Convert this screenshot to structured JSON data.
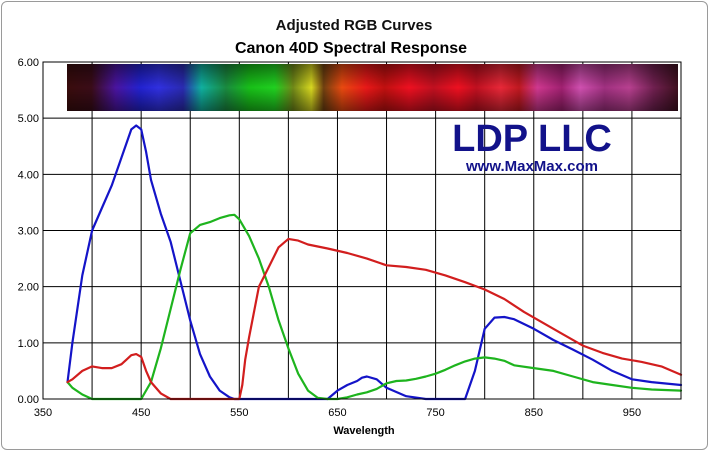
{
  "chart_data": {
    "type": "line",
    "title": "Adjusted RGB Curves",
    "subtitle": "Canon 40D Spectral Response",
    "xlabel": "Wavelength",
    "ylabel": "",
    "xlim": [
      350,
      1000
    ],
    "ylim": [
      0,
      6
    ],
    "x_ticks": [
      "350",
      "450",
      "550",
      "650",
      "750",
      "850",
      "950"
    ],
    "y_ticks": [
      "0.00",
      "1.00",
      "2.00",
      "3.00",
      "4.00",
      "5.00",
      "6.00"
    ],
    "grid": true,
    "legend": "none",
    "series": [
      {
        "color": "#1414c8",
        "x": [
          375,
          380,
          390,
          400,
          410,
          420,
          430,
          440,
          445,
          450,
          455,
          460,
          470,
          480,
          490,
          500,
          510,
          520,
          530,
          540,
          545,
          550,
          560,
          570,
          580,
          590,
          600,
          620,
          640,
          650,
          660,
          670,
          675,
          680,
          690,
          700,
          720,
          740,
          760,
          770,
          775,
          780,
          790,
          800,
          810,
          820,
          830,
          850,
          870,
          890,
          910,
          930,
          950,
          970,
          1000
        ],
        "y": [
          0.3,
          1.0,
          2.2,
          3.0,
          3.4,
          3.8,
          4.3,
          4.8,
          4.87,
          4.8,
          4.4,
          3.9,
          3.3,
          2.8,
          2.1,
          1.4,
          0.8,
          0.4,
          0.15,
          0.03,
          0.0,
          0.0,
          0.0,
          0.0,
          0.0,
          0.0,
          0.0,
          0.0,
          0.0,
          0.15,
          0.25,
          0.32,
          0.38,
          0.4,
          0.35,
          0.2,
          0.05,
          0.0,
          0.0,
          0.0,
          0.0,
          0.0,
          0.5,
          1.25,
          1.45,
          1.46,
          1.42,
          1.25,
          1.05,
          0.88,
          0.7,
          0.5,
          0.35,
          0.3,
          0.25
        ]
      },
      {
        "color": "#1eb41e",
        "x": [
          375,
          380,
          390,
          400,
          410,
          420,
          430,
          440,
          450,
          460,
          470,
          480,
          490,
          500,
          510,
          520,
          530,
          540,
          545,
          550,
          560,
          570,
          580,
          590,
          600,
          610,
          620,
          630,
          640,
          650,
          660,
          670,
          680,
          690,
          700,
          710,
          720,
          730,
          740,
          750,
          760,
          770,
          780,
          790,
          800,
          810,
          820,
          830,
          850,
          870,
          890,
          910,
          930,
          950,
          970,
          1000
        ],
        "y": [
          0.3,
          0.2,
          0.08,
          0.0,
          0.0,
          0.0,
          0.0,
          0.0,
          0.0,
          0.3,
          0.9,
          1.6,
          2.3,
          2.95,
          3.1,
          3.15,
          3.22,
          3.27,
          3.28,
          3.2,
          2.9,
          2.5,
          2.0,
          1.4,
          0.9,
          0.45,
          0.15,
          0.02,
          0.0,
          0.0,
          0.03,
          0.08,
          0.12,
          0.18,
          0.28,
          0.32,
          0.33,
          0.36,
          0.4,
          0.45,
          0.52,
          0.6,
          0.67,
          0.72,
          0.74,
          0.72,
          0.68,
          0.6,
          0.55,
          0.5,
          0.4,
          0.3,
          0.25,
          0.2,
          0.17,
          0.15
        ]
      },
      {
        "color": "#d21e1e",
        "x": [
          375,
          380,
          390,
          400,
          410,
          420,
          430,
          440,
          445,
          450,
          455,
          460,
          470,
          480,
          490,
          500,
          520,
          540,
          550,
          553,
          556,
          560,
          570,
          580,
          590,
          600,
          610,
          620,
          640,
          660,
          680,
          700,
          720,
          740,
          760,
          780,
          800,
          820,
          840,
          860,
          880,
          900,
          920,
          940,
          960,
          980,
          1000
        ],
        "y": [
          0.3,
          0.35,
          0.5,
          0.58,
          0.55,
          0.55,
          0.62,
          0.78,
          0.8,
          0.75,
          0.5,
          0.3,
          0.1,
          0.0,
          0.0,
          0.0,
          0.0,
          0.0,
          0.0,
          0.25,
          0.7,
          1.1,
          2.0,
          2.35,
          2.7,
          2.85,
          2.82,
          2.75,
          2.68,
          2.6,
          2.5,
          2.38,
          2.35,
          2.3,
          2.2,
          2.08,
          1.95,
          1.78,
          1.55,
          1.35,
          1.15,
          0.95,
          0.82,
          0.72,
          0.66,
          0.58,
          0.43
        ]
      }
    ],
    "annotations": {
      "brand": "LDP LLC",
      "url": "www.MaxMax.com"
    }
  }
}
